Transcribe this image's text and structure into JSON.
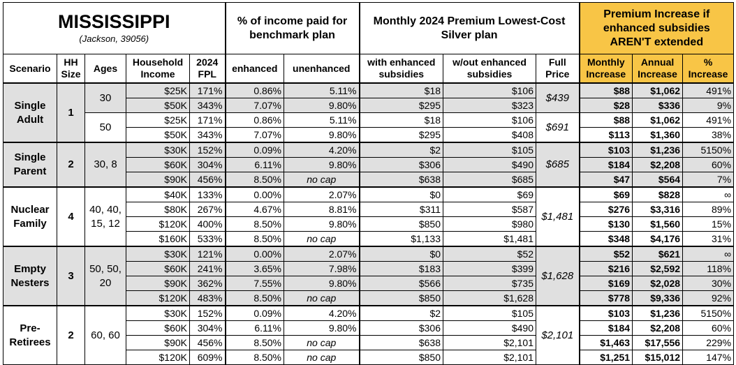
{
  "header": {
    "state": "MISSISSIPPI",
    "location": "(Jackson, 39056)",
    "income_group": "% of income paid for benchmark plan",
    "premium_group": "Monthly 2024 Premium Lowest-Cost Silver plan",
    "increase_group": "Premium Increase if enhanced subsidies AREN'T extended"
  },
  "columns": [
    "Scenario",
    "HH Size",
    "Ages",
    "Household Income",
    "2024 FPL",
    "enhanced",
    "unenhanced",
    "with enhanced subsidies",
    "w/out enhanced subsidies",
    "Full Price",
    "Monthly Increase",
    "Annual Increase",
    "% Increase"
  ],
  "groups": [
    {
      "scenario": "Single Adult",
      "hh_size": "1",
      "blocks": [
        {
          "ages": "30",
          "full_price": "$439",
          "rows": [
            [
              "$25K",
              "171%",
              "0.86%",
              "5.11%",
              "$18",
              "$106",
              "$88",
              "$1,062",
              "491%"
            ],
            [
              "$50K",
              "343%",
              "7.07%",
              "9.80%",
              "$295",
              "$323",
              "$28",
              "$336",
              "9%"
            ]
          ]
        },
        {
          "ages": "50",
          "full_price": "$691",
          "rows": [
            [
              "$25K",
              "171%",
              "0.86%",
              "5.11%",
              "$18",
              "$106",
              "$88",
              "$1,062",
              "491%"
            ],
            [
              "$50K",
              "343%",
              "7.07%",
              "9.80%",
              "$295",
              "$408",
              "$113",
              "$1,360",
              "38%"
            ]
          ]
        }
      ]
    },
    {
      "scenario": "Single Parent",
      "hh_size": "2",
      "blocks": [
        {
          "ages": "30, 8",
          "full_price": "$685",
          "rows": [
            [
              "$30K",
              "152%",
              "0.09%",
              "4.20%",
              "$2",
              "$105",
              "$103",
              "$1,236",
              "5150%"
            ],
            [
              "$60K",
              "304%",
              "6.11%",
              "9.80%",
              "$306",
              "$490",
              "$184",
              "$2,208",
              "60%"
            ],
            [
              "$90K",
              "456%",
              "8.50%",
              "no cap",
              "$638",
              "$685",
              "$47",
              "$564",
              "7%"
            ]
          ]
        }
      ]
    },
    {
      "scenario": "Nuclear Family",
      "hh_size": "4",
      "blocks": [
        {
          "ages": "40, 40, 15, 12",
          "full_price": "$1,481",
          "rows": [
            [
              "$40K",
              "133%",
              "0.00%",
              "2.07%",
              "$0",
              "$69",
              "$69",
              "$828",
              "∞"
            ],
            [
              "$80K",
              "267%",
              "4.67%",
              "8.81%",
              "$311",
              "$587",
              "$276",
              "$3,316",
              "89%"
            ],
            [
              "$120K",
              "400%",
              "8.50%",
              "9.80%",
              "$850",
              "$980",
              "$130",
              "$1,560",
              "15%"
            ],
            [
              "$160K",
              "533%",
              "8.50%",
              "no cap",
              "$1,133",
              "$1,481",
              "$348",
              "$4,176",
              "31%"
            ]
          ]
        }
      ]
    },
    {
      "scenario": "Empty Nesters",
      "hh_size": "3",
      "blocks": [
        {
          "ages": "50, 50, 20",
          "full_price": "$1,628",
          "rows": [
            [
              "$30K",
              "121%",
              "0.00%",
              "2.07%",
              "$0",
              "$52",
              "$52",
              "$621",
              "∞"
            ],
            [
              "$60K",
              "241%",
              "3.65%",
              "7.98%",
              "$183",
              "$399",
              "$216",
              "$2,592",
              "118%"
            ],
            [
              "$90K",
              "362%",
              "7.55%",
              "9.80%",
              "$566",
              "$735",
              "$169",
              "$2,028",
              "30%"
            ],
            [
              "$120K",
              "483%",
              "8.50%",
              "no cap",
              "$850",
              "$1,628",
              "$778",
              "$9,336",
              "92%"
            ]
          ]
        }
      ]
    },
    {
      "scenario": "Pre-Retirees",
      "hh_size": "2",
      "blocks": [
        {
          "ages": "60, 60",
          "full_price": "$2,101",
          "rows": [
            [
              "$30K",
              "152%",
              "0.09%",
              "4.20%",
              "$2",
              "$105",
              "$103",
              "$1,236",
              "5150%"
            ],
            [
              "$60K",
              "304%",
              "6.11%",
              "9.80%",
              "$306",
              "$490",
              "$184",
              "$2,208",
              "60%"
            ],
            [
              "$90K",
              "456%",
              "8.50%",
              "no cap",
              "$638",
              "$2,101",
              "$1,463",
              "$17,556",
              "229%"
            ],
            [
              "$120K",
              "609%",
              "8.50%",
              "no cap",
              "$850",
              "$2,101",
              "$1,251",
              "$15,012",
              "147%"
            ]
          ]
        }
      ]
    }
  ]
}
